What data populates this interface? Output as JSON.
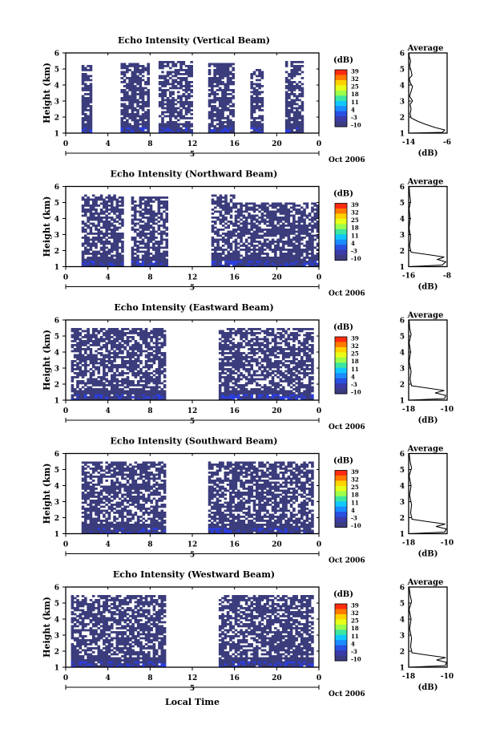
{
  "figure": {
    "xlabel": "Local Time",
    "date_label": "Oct 2006",
    "day_label": "5",
    "colorbar_unit": "(dB)",
    "colorbar_ticks": [
      "39",
      "32",
      "25",
      "18",
      "11",
      "4",
      "-3",
      "-10"
    ],
    "colorbar_colors": [
      "#ff2a10",
      "#ff7a00",
      "#ffd200",
      "#e8ff1a",
      "#9cff4a",
      "#3ce6a0",
      "#10c8ff",
      "#1a8cff",
      "#2850e0",
      "#3a3aa8",
      "#3b3b80"
    ],
    "heatmap_color": "#3b3c7c",
    "heatmap_highlight_color": "#2a3ee0",
    "avg_title": "Average",
    "avg_xlabel": "(dB)"
  },
  "chart_data": [
    {
      "type": "heatmap",
      "title": "Echo Intensity (Vertical Beam)",
      "ylabel": "Height (km)",
      "xlim": [
        0,
        24
      ],
      "ylim": [
        1,
        6
      ],
      "x_ticks": [
        "0",
        "4",
        "8",
        "12",
        "16",
        "20",
        "0"
      ],
      "y_ticks": [
        "1",
        "2",
        "3",
        "4",
        "5",
        "6"
      ],
      "echo_blocks_hours": [
        [
          1.5,
          2.5
        ],
        [
          5.2,
          7.8
        ],
        [
          8.8,
          12.0
        ],
        [
          13.5,
          15.8
        ],
        [
          17.5,
          18.6
        ],
        [
          20.8,
          22.4
        ]
      ],
      "blocks_top_km": [
        5.2,
        5.3,
        5.4,
        5.3,
        5.0,
        5.4
      ],
      "avg_xlim": [
        -14,
        -6
      ],
      "avg_xticks": [
        "-14",
        "-6"
      ],
      "avg_profile_db": [
        [
          -13.9,
          1.0
        ],
        [
          -7,
          1.05
        ],
        [
          -6.5,
          1.2
        ],
        [
          -8.5,
          1.35
        ],
        [
          -10.5,
          1.55
        ],
        [
          -12.2,
          1.75
        ],
        [
          -13.5,
          1.95
        ],
        [
          -13.7,
          2.2
        ],
        [
          -13.5,
          2.5
        ],
        [
          -13.7,
          2.8
        ],
        [
          -13.2,
          3.0
        ],
        [
          -13.8,
          3.3
        ],
        [
          -13.5,
          3.6
        ],
        [
          -13.2,
          3.9
        ],
        [
          -13.6,
          4.1
        ],
        [
          -13.9,
          4.4
        ],
        [
          -13.3,
          4.6
        ],
        [
          -13.5,
          4.9
        ],
        [
          -13.8,
          5.2
        ],
        [
          -13.6,
          5.5
        ],
        [
          -13.9,
          5.8
        ],
        [
          -13.9,
          6.0
        ]
      ]
    },
    {
      "type": "heatmap",
      "title": "Echo Intensity (Northward Beam)",
      "ylabel": "Height (km)",
      "xlim": [
        0,
        24
      ],
      "ylim": [
        1,
        6
      ],
      "x_ticks": [
        "0",
        "4",
        "8",
        "12",
        "16",
        "20",
        "0"
      ],
      "y_ticks": [
        "1",
        "2",
        "3",
        "4",
        "5",
        "6"
      ],
      "echo_blocks_hours": [
        [
          1.5,
          5.5
        ],
        [
          6.2,
          9.5
        ],
        [
          13.8,
          16.0
        ],
        [
          16.0,
          24.0
        ]
      ],
      "blocks_top_km": [
        5.4,
        5.3,
        5.5,
        4.9
      ],
      "avg_xlim": [
        -16,
        -8
      ],
      "avg_xticks": [
        "-16",
        "-8"
      ],
      "avg_profile_db": [
        [
          -16,
          1.0
        ],
        [
          -9,
          1.1
        ],
        [
          -8.3,
          1.3
        ],
        [
          -10,
          1.45
        ],
        [
          -8.6,
          1.6
        ],
        [
          -12,
          1.75
        ],
        [
          -15.5,
          1.9
        ],
        [
          -15.8,
          2.3
        ],
        [
          -15.6,
          2.8
        ],
        [
          -15.9,
          3.4
        ],
        [
          -15.7,
          4.0
        ],
        [
          -15.9,
          4.6
        ],
        [
          -15.6,
          5.1
        ],
        [
          -15.8,
          5.5
        ],
        [
          -15.9,
          6.0
        ]
      ]
    },
    {
      "type": "heatmap",
      "title": "Echo Intensity (Eastward Beam)",
      "ylabel": "Height (km)",
      "xlim": [
        0,
        24
      ],
      "ylim": [
        1,
        6
      ],
      "x_ticks": [
        "0",
        "4",
        "8",
        "12",
        "16",
        "20",
        "0"
      ],
      "y_ticks": [
        "1",
        "2",
        "3",
        "4",
        "5",
        "6"
      ],
      "echo_blocks_hours": [
        [
          0.5,
          5.5
        ],
        [
          5.5,
          9.5
        ],
        [
          14.5,
          23.5
        ]
      ],
      "blocks_top_km": [
        5.5,
        5.5,
        5.5
      ],
      "avg_xlim": [
        -18,
        -10
      ],
      "avg_xticks": [
        "-18",
        "-10"
      ],
      "avg_profile_db": [
        [
          -18,
          1.0
        ],
        [
          -10.5,
          1.1
        ],
        [
          -10.3,
          1.3
        ],
        [
          -12.5,
          1.45
        ],
        [
          -10.6,
          1.6
        ],
        [
          -14,
          1.75
        ],
        [
          -17.4,
          1.9
        ],
        [
          -17.7,
          2.3
        ],
        [
          -17.5,
          2.8
        ],
        [
          -17.9,
          3.4
        ],
        [
          -17.6,
          4.0
        ],
        [
          -17.9,
          4.6
        ],
        [
          -17.5,
          5.1
        ],
        [
          -17.8,
          5.5
        ],
        [
          -17.9,
          6.0
        ]
      ]
    },
    {
      "type": "heatmap",
      "title": "Echo Intensity (Southward Beam)",
      "ylabel": "Height (km)",
      "xlim": [
        0,
        24
      ],
      "ylim": [
        1,
        6
      ],
      "x_ticks": [
        "0",
        "4",
        "8",
        "12",
        "16",
        "20",
        "0"
      ],
      "y_ticks": [
        "1",
        "2",
        "3",
        "4",
        "5",
        "6"
      ],
      "echo_blocks_hours": [
        [
          1.5,
          9.5
        ],
        [
          13.5,
          23.5
        ]
      ],
      "blocks_top_km": [
        5.5,
        5.4
      ],
      "avg_xlim": [
        -18,
        -10
      ],
      "avg_xticks": [
        "-18",
        "-10"
      ],
      "avg_profile_db": [
        [
          -18,
          1.0
        ],
        [
          -10.5,
          1.1
        ],
        [
          -10.2,
          1.3
        ],
        [
          -12.3,
          1.45
        ],
        [
          -10.4,
          1.6
        ],
        [
          -14,
          1.75
        ],
        [
          -17.3,
          1.9
        ],
        [
          -17.6,
          2.3
        ],
        [
          -17.4,
          2.8
        ],
        [
          -17.8,
          3.4
        ],
        [
          -17.5,
          4.0
        ],
        [
          -17.9,
          4.6
        ],
        [
          -17.4,
          5.1
        ],
        [
          -17.7,
          5.5
        ],
        [
          -17.9,
          6.0
        ]
      ]
    },
    {
      "type": "heatmap",
      "title": "Echo Intensity (Westward Beam)",
      "ylabel": "Height (km)",
      "xlim": [
        0,
        24
      ],
      "ylim": [
        1,
        6
      ],
      "x_ticks": [
        "0",
        "4",
        "8",
        "12",
        "16",
        "20",
        "0"
      ],
      "y_ticks": [
        "1",
        "2",
        "3",
        "4",
        "5",
        "6"
      ],
      "echo_blocks_hours": [
        [
          0.5,
          9.5
        ],
        [
          14.5,
          23.5
        ]
      ],
      "blocks_top_km": [
        5.5,
        5.5
      ],
      "avg_xlim": [
        -18,
        -10
      ],
      "avg_xticks": [
        "-18",
        "-10"
      ],
      "avg_profile_db": [
        [
          -18,
          1.0
        ],
        [
          -10.4,
          1.1
        ],
        [
          -10.1,
          1.3
        ],
        [
          -12.2,
          1.45
        ],
        [
          -10.3,
          1.6
        ],
        [
          -14,
          1.75
        ],
        [
          -17.3,
          1.9
        ],
        [
          -17.6,
          2.3
        ],
        [
          -17.4,
          2.8
        ],
        [
          -17.8,
          3.4
        ],
        [
          -17.5,
          4.0
        ],
        [
          -17.9,
          4.6
        ],
        [
          -17.4,
          5.1
        ],
        [
          -17.7,
          5.5
        ],
        [
          -17.9,
          6.0
        ]
      ]
    }
  ]
}
